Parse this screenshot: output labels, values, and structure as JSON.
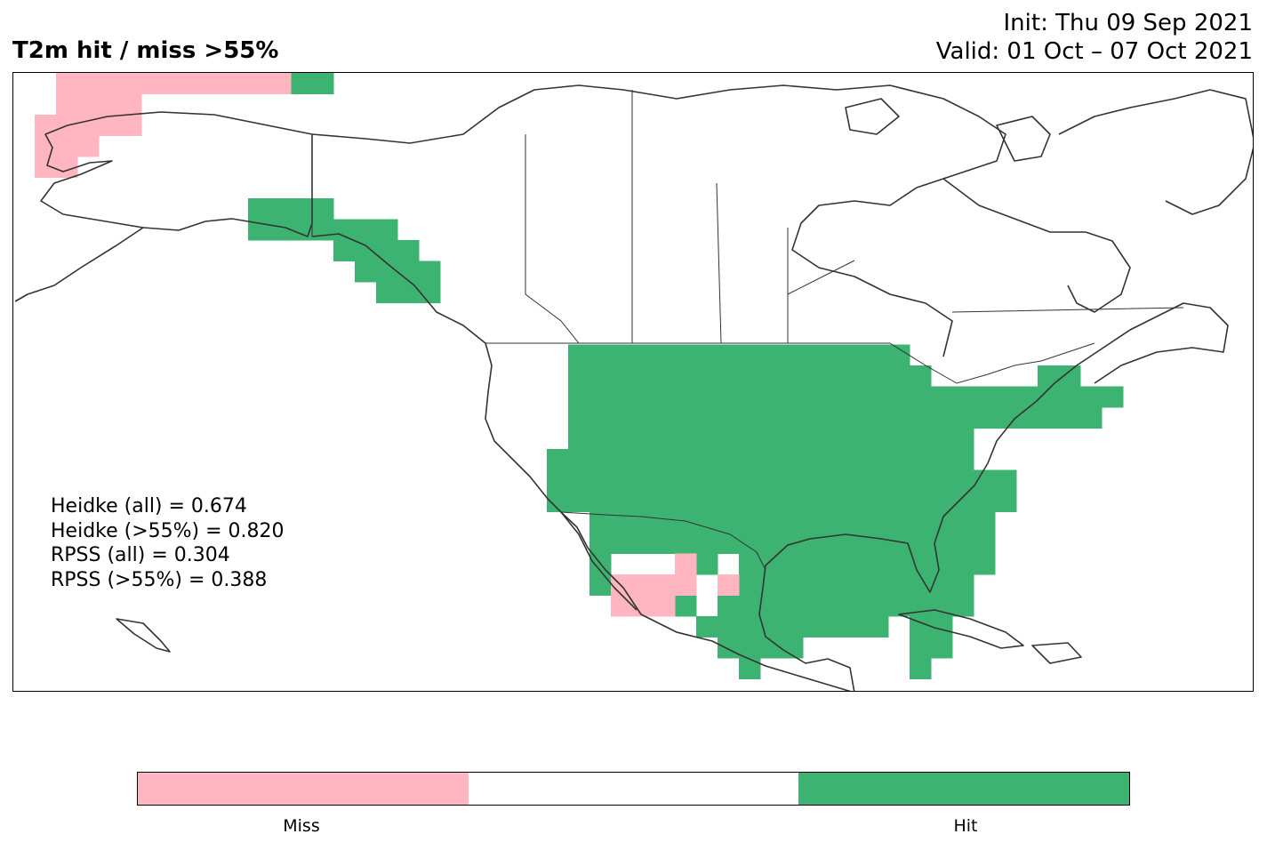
{
  "title": "T2m hit / miss  >55%",
  "init_label": "Init: Thu 09 Sep 2021",
  "valid_label": "Valid: 01 Oct – 07 Oct 2021",
  "stats": [
    "Heidke (all) = 0.674",
    "Heidke (>55%) = 0.820",
    "RPSS (all) = 0.304",
    "RPSS (>55%) = 0.388"
  ],
  "colors": {
    "miss": "#ffb6c1",
    "neutral": "#ffffff",
    "hit": "#3cb371",
    "coast": "#333333"
  },
  "colorbar": {
    "miss_label": "Miss",
    "hit_label": "Hit"
  }
}
